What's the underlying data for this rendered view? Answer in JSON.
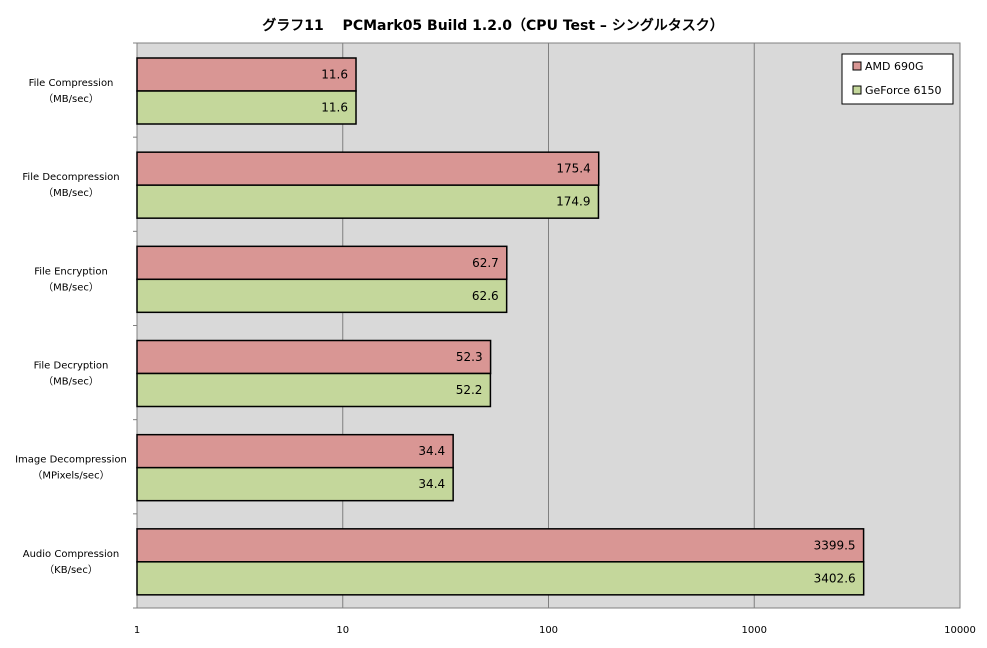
{
  "chart_data": {
    "type": "bar",
    "orientation": "horizontal",
    "title": "グラフ11　 PCMark05 Build 1.2.0（CPU Test – シングルタスク）",
    "xscale": "log",
    "xlim": [
      1,
      10000
    ],
    "xticks": [
      "1",
      "10",
      "100",
      "1000",
      "10000"
    ],
    "grid": true,
    "legend_position": "top-right",
    "categories": [
      [
        "File Compression",
        "（MB/sec）"
      ],
      [
        "File Decompression",
        "（MB/sec）"
      ],
      [
        "File Encryption",
        "（MB/sec）"
      ],
      [
        "File Decryption",
        "（MB/sec）"
      ],
      [
        "Image Decompression",
        "（MPixels/sec）"
      ],
      [
        "Audio Compression",
        "（KB/sec）"
      ]
    ],
    "series": [
      {
        "name": "AMD 690G",
        "color": "#d99694",
        "values": [
          11.6,
          175.4,
          62.7,
          52.3,
          34.4,
          3399.5
        ]
      },
      {
        "name": "GeForce 6150",
        "color": "#c4d79b",
        "values": [
          11.6,
          174.9,
          62.6,
          52.2,
          34.4,
          3402.6
        ]
      }
    ],
    "plot_background": "#d9d9d9"
  }
}
